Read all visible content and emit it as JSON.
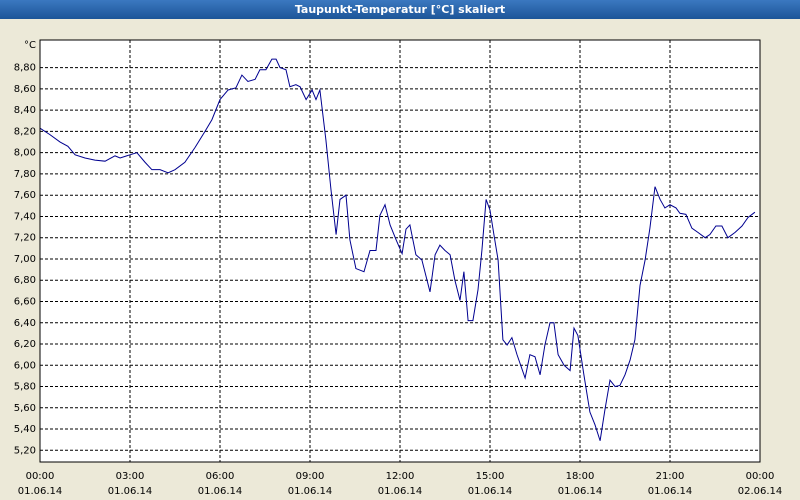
{
  "chart_data": {
    "type": "line",
    "title": "Taupunkt-Temperatur [°C] skaliert",
    "y_label": "°C",
    "x": [
      0,
      0.33,
      0.67,
      0.93,
      1.17,
      1.5,
      1.83,
      2.17,
      2.5,
      2.67,
      3,
      3.23,
      3.5,
      3.73,
      4,
      4.27,
      4.5,
      4.83,
      5.17,
      5.5,
      5.73,
      6,
      6.27,
      6.53,
      6.73,
      6.93,
      7.17,
      7.33,
      7.53,
      7.73,
      7.87,
      8,
      8.2,
      8.33,
      8.53,
      8.67,
      8.87,
      9.07,
      9.2,
      9.33,
      9.53,
      9.7,
      9.87,
      10,
      10.2,
      10.33,
      10.53,
      10.8,
      11,
      11.2,
      11.33,
      11.5,
      11.67,
      11.87,
      12.07,
      12.2,
      12.33,
      12.53,
      12.73,
      13,
      13.17,
      13.33,
      13.5,
      13.67,
      13.83,
      14,
      14.13,
      14.27,
      14.43,
      14.6,
      14.73,
      14.87,
      15,
      15.13,
      15.27,
      15.43,
      15.57,
      15.73,
      15.9,
      16.17,
      16.33,
      16.5,
      16.67,
      16.83,
      17,
      17.13,
      17.27,
      17.47,
      17.67,
      17.8,
      17.93,
      18.13,
      18.33,
      18.5,
      18.67,
      18.83,
      19,
      19.17,
      19.33,
      19.5,
      19.67,
      19.83,
      20,
      20.17,
      20.33,
      20.5,
      20.67,
      20.83,
      21,
      21.2,
      21.33,
      21.53,
      21.73,
      21.93,
      22.17,
      22.33,
      22.53,
      22.73,
      22.93,
      23.17,
      23.4,
      23.6,
      23.83
    ],
    "series": [
      {
        "name": "Taupunkt",
        "color": "#000090",
        "values": [
          8.23,
          8.17,
          8.1,
          8.06,
          7.98,
          7.95,
          7.93,
          7.92,
          7.97,
          7.95,
          7.98,
          8,
          7.91,
          7.84,
          7.84,
          7.81,
          7.84,
          7.91,
          8.05,
          8.2,
          8.31,
          8.5,
          8.59,
          8.61,
          8.73,
          8.67,
          8.69,
          8.78,
          8.78,
          8.88,
          8.88,
          8.8,
          8.78,
          8.62,
          8.64,
          8.62,
          8.5,
          8.59,
          8.5,
          8.59,
          8.12,
          7.65,
          7.23,
          7.56,
          7.6,
          7.18,
          6.91,
          6.88,
          7.08,
          7.08,
          7.41,
          7.51,
          7.32,
          7.18,
          7.05,
          7.28,
          7.32,
          7.04,
          6.99,
          6.69,
          7.04,
          7.13,
          7.08,
          7.04,
          6.8,
          6.61,
          6.88,
          6.42,
          6.42,
          6.71,
          7.08,
          7.56,
          7.46,
          7.23,
          6.99,
          6.24,
          6.19,
          6.26,
          6.1,
          5.88,
          6.1,
          6.08,
          5.91,
          6.19,
          6.4,
          6.4,
          6.1,
          6,
          5.95,
          6.35,
          6.28,
          5.91,
          5.56,
          5.44,
          5.29,
          5.58,
          5.86,
          5.8,
          5.81,
          5.91,
          6.05,
          6.24,
          6.75,
          6.99,
          7.29,
          7.68,
          7.56,
          7.48,
          7.51,
          7.48,
          7.43,
          7.42,
          7.29,
          7.25,
          7.2,
          7.23,
          7.31,
          7.31,
          7.2,
          7.25,
          7.31,
          7.39,
          7.44
        ]
      }
    ],
    "xlim": [
      0,
      24
    ],
    "xticks": [
      {
        "value": 0,
        "label": "00:00"
      },
      {
        "value": 3,
        "label": "03:00"
      },
      {
        "value": 6,
        "label": "06:00"
      },
      {
        "value": 9,
        "label": "09:00"
      },
      {
        "value": 12,
        "label": "12:00"
      },
      {
        "value": 15,
        "label": "15:00"
      },
      {
        "value": 18,
        "label": "18:00"
      },
      {
        "value": 21,
        "label": "21:00"
      },
      {
        "value": 24,
        "label": "00:00"
      }
    ],
    "xtick_dates": [
      "01.06.14",
      "01.06.14",
      "01.06.14",
      "01.06.14",
      "01.06.14",
      "01.06.14",
      "01.06.14",
      "01.06.14",
      "02.06.14"
    ],
    "ylim": [
      5.09,
      9.06
    ],
    "yticks": [
      {
        "value": 5.2,
        "label": "5,20"
      },
      {
        "value": 5.4,
        "label": "5,40"
      },
      {
        "value": 5.6,
        "label": "5,60"
      },
      {
        "value": 5.8,
        "label": "5,80"
      },
      {
        "value": 6.0,
        "label": "6,00"
      },
      {
        "value": 6.2,
        "label": "6,20"
      },
      {
        "value": 6.4,
        "label": "6,40"
      },
      {
        "value": 6.6,
        "label": "6,60"
      },
      {
        "value": 6.8,
        "label": "6,80"
      },
      {
        "value": 7.0,
        "label": "7,00"
      },
      {
        "value": 7.2,
        "label": "7,20"
      },
      {
        "value": 7.4,
        "label": "7,40"
      },
      {
        "value": 7.6,
        "label": "7,60"
      },
      {
        "value": 7.8,
        "label": "7,80"
      },
      {
        "value": 8.0,
        "label": "8,00"
      },
      {
        "value": 8.2,
        "label": "8,20"
      },
      {
        "value": 8.4,
        "label": "8,40"
      },
      {
        "value": 8.6,
        "label": "8,60"
      },
      {
        "value": 8.8,
        "label": "8,80"
      }
    ],
    "grid": true
  }
}
